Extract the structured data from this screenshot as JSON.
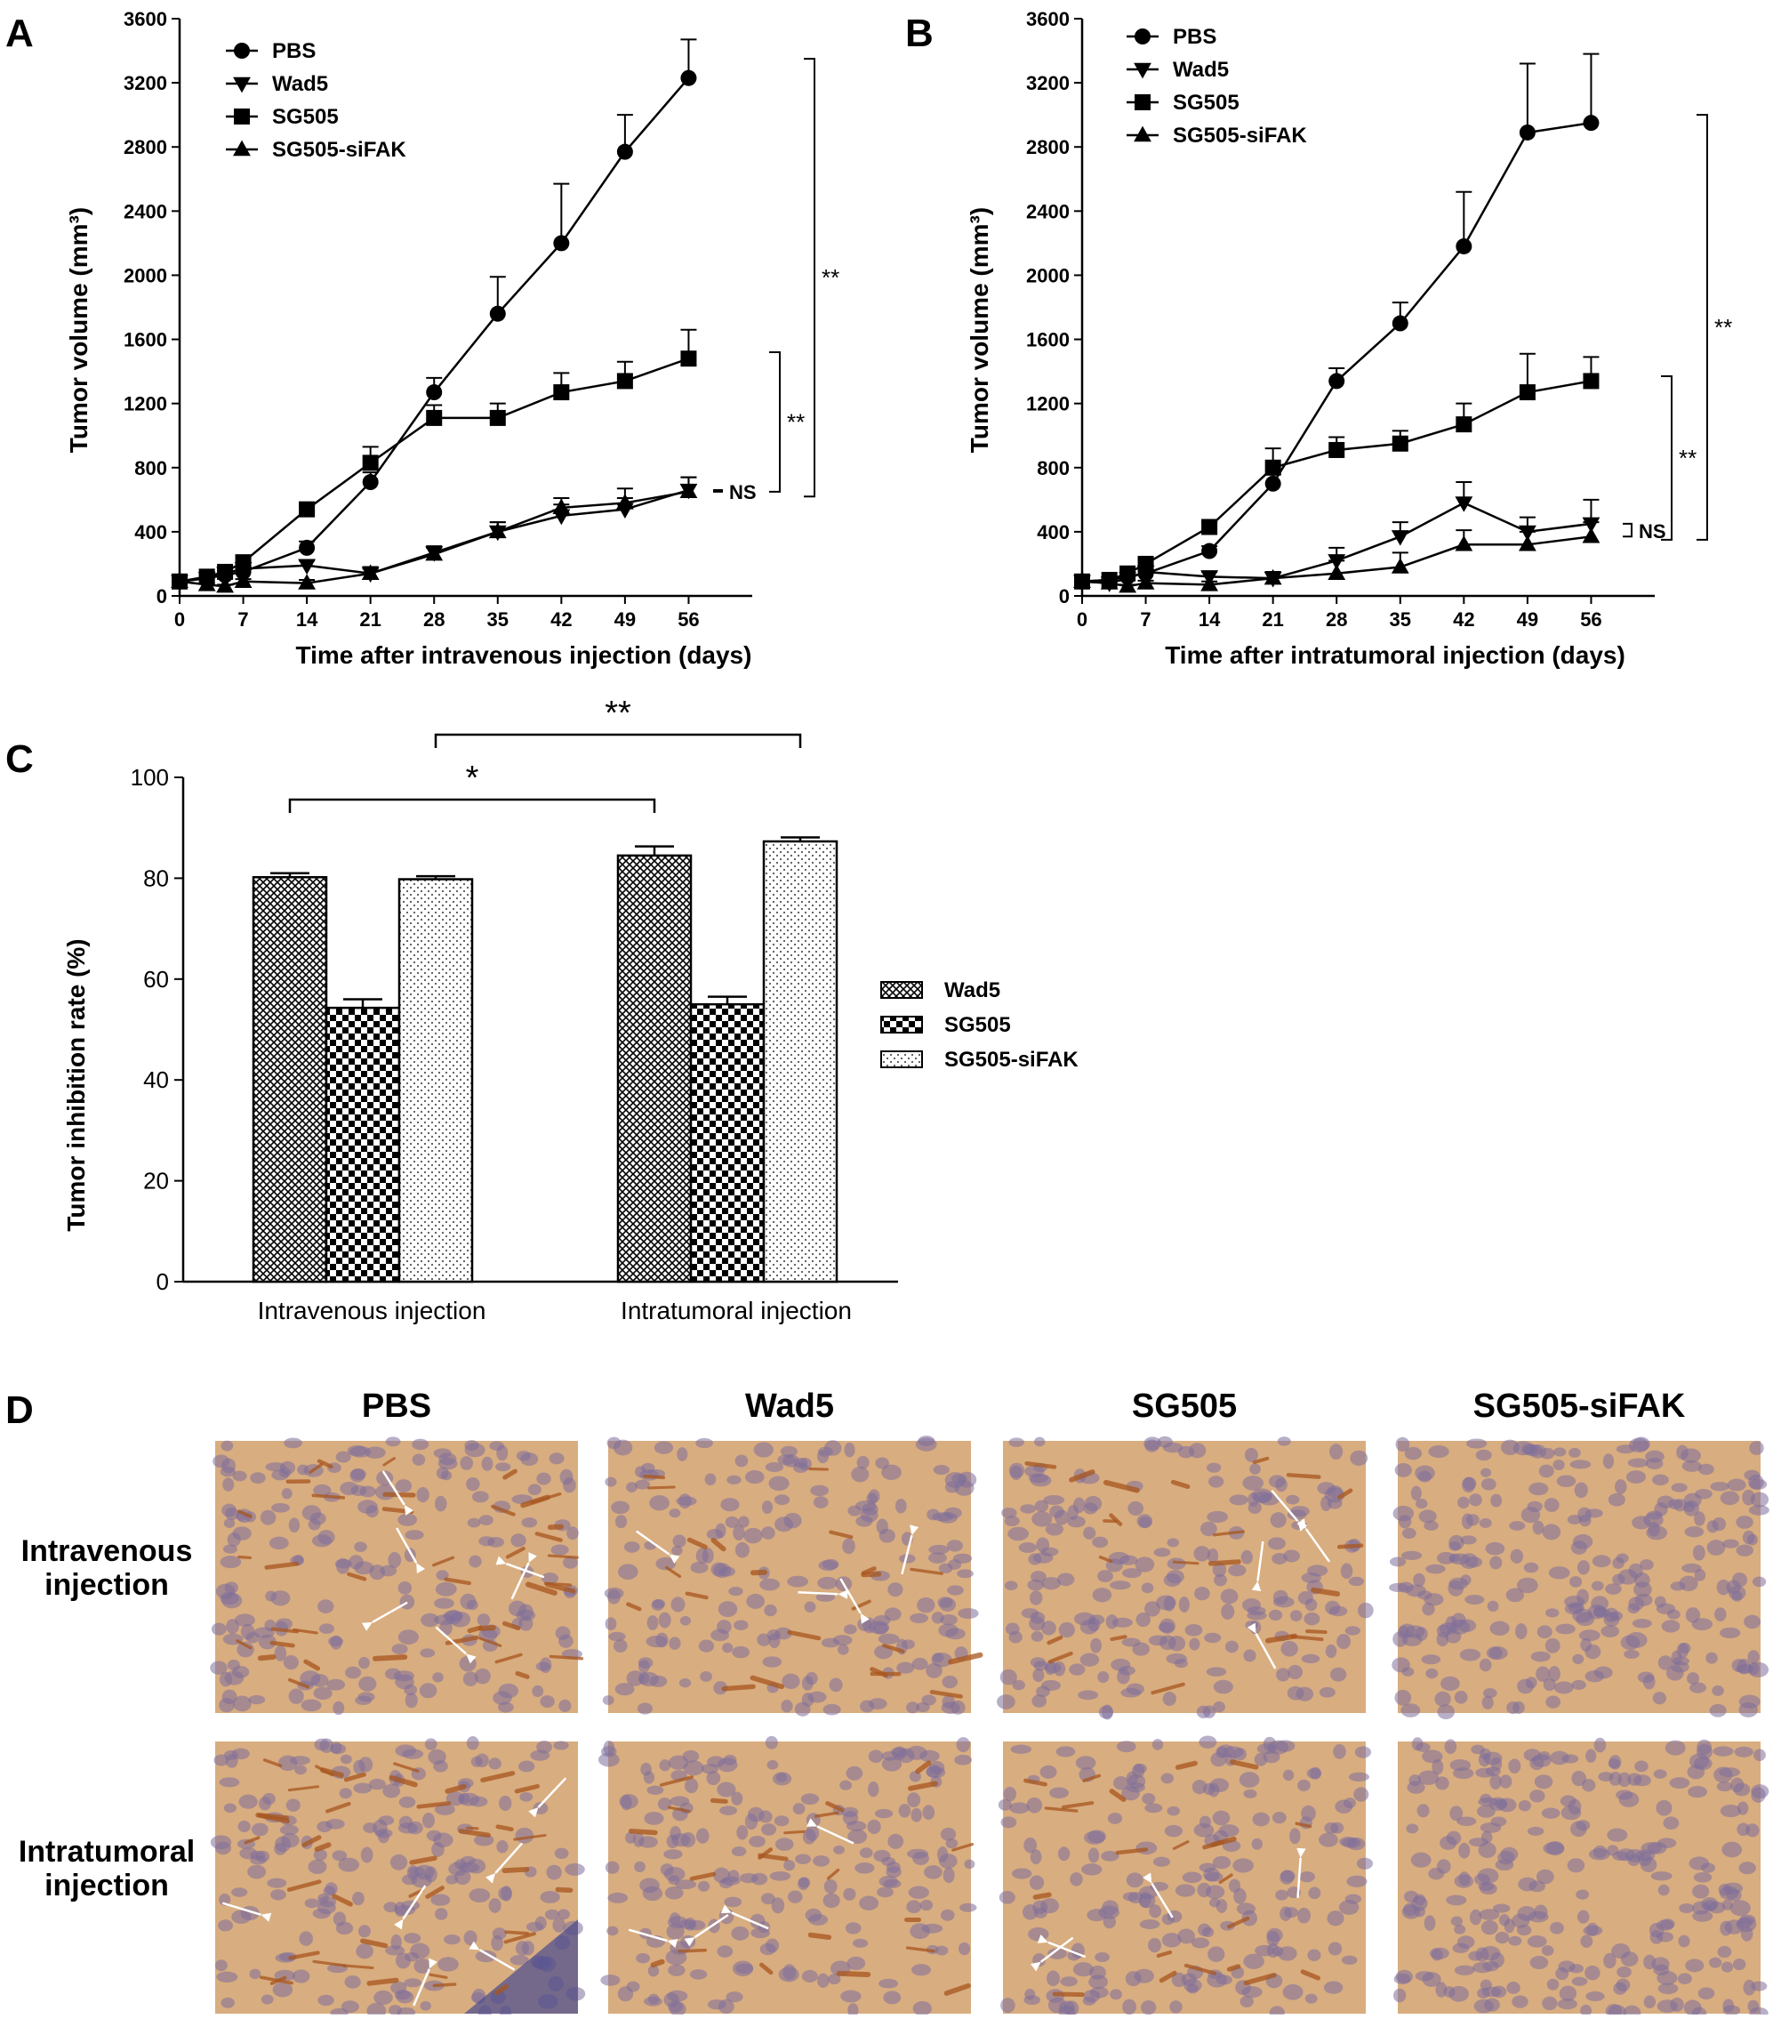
{
  "panels": {
    "a": "A",
    "b": "B",
    "c": "C",
    "d": "D"
  },
  "significance": {
    "ns": "NS",
    "double": "**",
    "single": "*"
  },
  "chart_data": [
    {
      "id": "A",
      "type": "line",
      "xlabel": "Time after intravenous injection (days)",
      "ylabel": "Tumor volume (mm³)",
      "xticks": [
        0,
        7,
        14,
        21,
        28,
        35,
        42,
        49,
        56
      ],
      "yticks": [
        0,
        400,
        800,
        1200,
        1600,
        2000,
        2400,
        2800,
        3200,
        3600
      ],
      "xlim": [
        0,
        63
      ],
      "ylim": [
        0,
        3600
      ],
      "legend_position": "top-left",
      "grid": false,
      "x": [
        0,
        3,
        5,
        7,
        14,
        21,
        28,
        35,
        42,
        49,
        56
      ],
      "series": [
        {
          "name": "PBS",
          "marker": "circle",
          "values": [
            90,
            110,
            130,
            150,
            300,
            710,
            1270,
            1760,
            2200,
            2770,
            3230
          ],
          "errors": [
            10,
            15,
            15,
            20,
            40,
            60,
            90,
            230,
            370,
            230,
            240
          ]
        },
        {
          "name": "Wad5",
          "marker": "triangle-down",
          "values": [
            90,
            110,
            140,
            170,
            190,
            140,
            270,
            400,
            500,
            540,
            660
          ],
          "errors": [
            10,
            15,
            15,
            20,
            30,
            40,
            40,
            60,
            70,
            70,
            80
          ]
        },
        {
          "name": "SG505",
          "marker": "square",
          "values": [
            90,
            120,
            150,
            210,
            540,
            830,
            1110,
            1110,
            1270,
            1340,
            1480
          ],
          "errors": [
            10,
            15,
            20,
            30,
            30,
            100,
            80,
            90,
            120,
            120,
            180
          ]
        },
        {
          "name": "SG505-siFAK",
          "marker": "triangle-up",
          "values": [
            90,
            70,
            60,
            90,
            80,
            140,
            260,
            400,
            550,
            580,
            650
          ],
          "errors": [
            10,
            10,
            10,
            15,
            20,
            30,
            40,
            60,
            60,
            90,
            90
          ]
        }
      ],
      "comparisons": [
        {
          "from": 650,
          "to": 660,
          "label": "NS"
        },
        {
          "from": 650,
          "to": 1520,
          "label": "**"
        },
        {
          "from": 620,
          "to": 3350,
          "label": "**"
        }
      ]
    },
    {
      "id": "B",
      "type": "line",
      "xlabel": "Time after intratumoral injection (days)",
      "ylabel": "Tumor volume (mm³)",
      "xticks": [
        0,
        7,
        14,
        21,
        28,
        35,
        42,
        49,
        56
      ],
      "yticks": [
        0,
        400,
        800,
        1200,
        1600,
        2000,
        2400,
        2800,
        3200,
        3600
      ],
      "xlim": [
        0,
        63
      ],
      "ylim": [
        0,
        3600
      ],
      "legend_position": "top-left",
      "grid": false,
      "x": [
        0,
        3,
        5,
        7,
        14,
        21,
        28,
        35,
        42,
        49,
        56
      ],
      "series": [
        {
          "name": "PBS",
          "marker": "circle",
          "values": [
            90,
            100,
            120,
            140,
            280,
            700,
            1340,
            1700,
            2180,
            2890,
            2950
          ],
          "errors": [
            10,
            15,
            15,
            20,
            30,
            60,
            80,
            130,
            340,
            430,
            430
          ]
        },
        {
          "name": "Wad5",
          "marker": "triangle-down",
          "values": [
            90,
            80,
            110,
            150,
            120,
            110,
            220,
            370,
            580,
            400,
            450
          ],
          "errors": [
            10,
            10,
            15,
            20,
            30,
            40,
            80,
            90,
            130,
            90,
            150
          ]
        },
        {
          "name": "SG505",
          "marker": "square",
          "values": [
            90,
            100,
            140,
            200,
            430,
            800,
            910,
            950,
            1070,
            1270,
            1340
          ],
          "errors": [
            10,
            15,
            20,
            30,
            30,
            120,
            80,
            80,
            130,
            240,
            150
          ]
        },
        {
          "name": "SG505-siFAK",
          "marker": "triangle-up",
          "values": [
            90,
            80,
            60,
            80,
            70,
            110,
            140,
            180,
            320,
            320,
            370
          ],
          "errors": [
            10,
            10,
            10,
            15,
            20,
            40,
            80,
            90,
            90,
            80,
            90
          ]
        }
      ],
      "comparisons": [
        {
          "from": 370,
          "to": 450,
          "label": "NS"
        },
        {
          "from": 350,
          "to": 1370,
          "label": "**"
        },
        {
          "from": 350,
          "to": 3000,
          "label": "**"
        }
      ]
    },
    {
      "id": "C",
      "type": "bar",
      "ylabel": "Tumor inhibition rate (%)",
      "categories": [
        "Intravenous injection",
        "Intratumoral injection"
      ],
      "yticks": [
        0,
        20,
        40,
        60,
        80,
        100
      ],
      "ylim": [
        0,
        100
      ],
      "legend_position": "right",
      "grid": false,
      "series": [
        {
          "name": "Wad5",
          "pattern": "crosshatch",
          "values": [
            80.2,
            84.5
          ],
          "errors": [
            0.8,
            1.8
          ]
        },
        {
          "name": "SG505",
          "pattern": "checker",
          "values": [
            54.3,
            55.0
          ],
          "errors": [
            1.7,
            1.5
          ]
        },
        {
          "name": "SG505-siFAK",
          "pattern": "stipple",
          "values": [
            79.8,
            87.3
          ],
          "errors": [
            0.6,
            0.8
          ]
        }
      ],
      "comparisons": [
        {
          "from_category": 0,
          "from_series": 0,
          "to_category": 1,
          "to_series": 0,
          "label": "*"
        },
        {
          "from_category": 0,
          "from_series": 2,
          "to_category": 1,
          "to_series": 2,
          "label": "**"
        }
      ]
    }
  ],
  "micrographs": {
    "columns": [
      "PBS",
      "Wad5",
      "SG505",
      "SG505-siFAK"
    ],
    "rows": [
      {
        "label_line1": "Intravenous",
        "label_line2": "injection"
      },
      {
        "label_line1": "Intratumoral",
        "label_line2": "injection"
      }
    ],
    "colors": {
      "stroma": "#d8ad80",
      "cells": "#7d6e9a",
      "stain": "#a8561e",
      "hematoxylin_dark": "#4a4c8e",
      "arrow": "#ffffff"
    }
  }
}
